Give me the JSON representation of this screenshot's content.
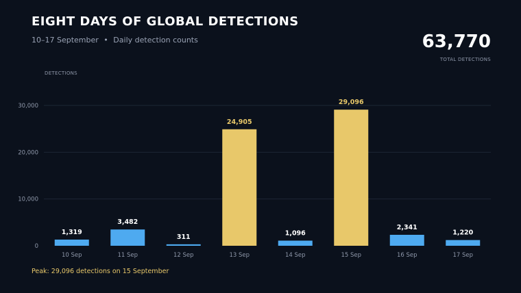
{
  "title": "EIGHT DAYS OF GLOBAL DETECTIONS",
  "subtitle": {
    "range": "10–17 September",
    "separator": "•",
    "description": "Daily detection counts"
  },
  "total": {
    "value": "63,770",
    "label": "TOTAL DETECTIONS"
  },
  "footnote": "Peak: 29,096 detections on 15 September",
  "colors": {
    "background": "#0b111c",
    "bar_normal": "#4eaaf0",
    "bar_highlight": "#e8c86a",
    "grid": "#1e2635",
    "axis_text": "#8f98aa",
    "label_normal": "#ffffff",
    "label_highlight": "#e8c86a"
  },
  "chart_data": {
    "type": "bar",
    "ylabel": "DETECTIONS",
    "categories": [
      "10 Sep",
      "11 Sep",
      "12 Sep",
      "13 Sep",
      "14 Sep",
      "15 Sep",
      "16 Sep",
      "17 Sep"
    ],
    "values": [
      1319,
      3482,
      311,
      24905,
      1096,
      29096,
      2341,
      1220
    ],
    "value_labels": [
      "1,319",
      "3,482",
      "311",
      "24,905",
      "1,096",
      "29,096",
      "2,341",
      "1,220"
    ],
    "highlighted": [
      false,
      false,
      false,
      true,
      false,
      true,
      false,
      false
    ],
    "yticks": [
      0,
      10000,
      20000,
      30000
    ],
    "ytick_labels": [
      "0",
      "10,000",
      "20,000",
      "30,000"
    ],
    "ylim": [
      0,
      30000
    ],
    "grid": true
  }
}
